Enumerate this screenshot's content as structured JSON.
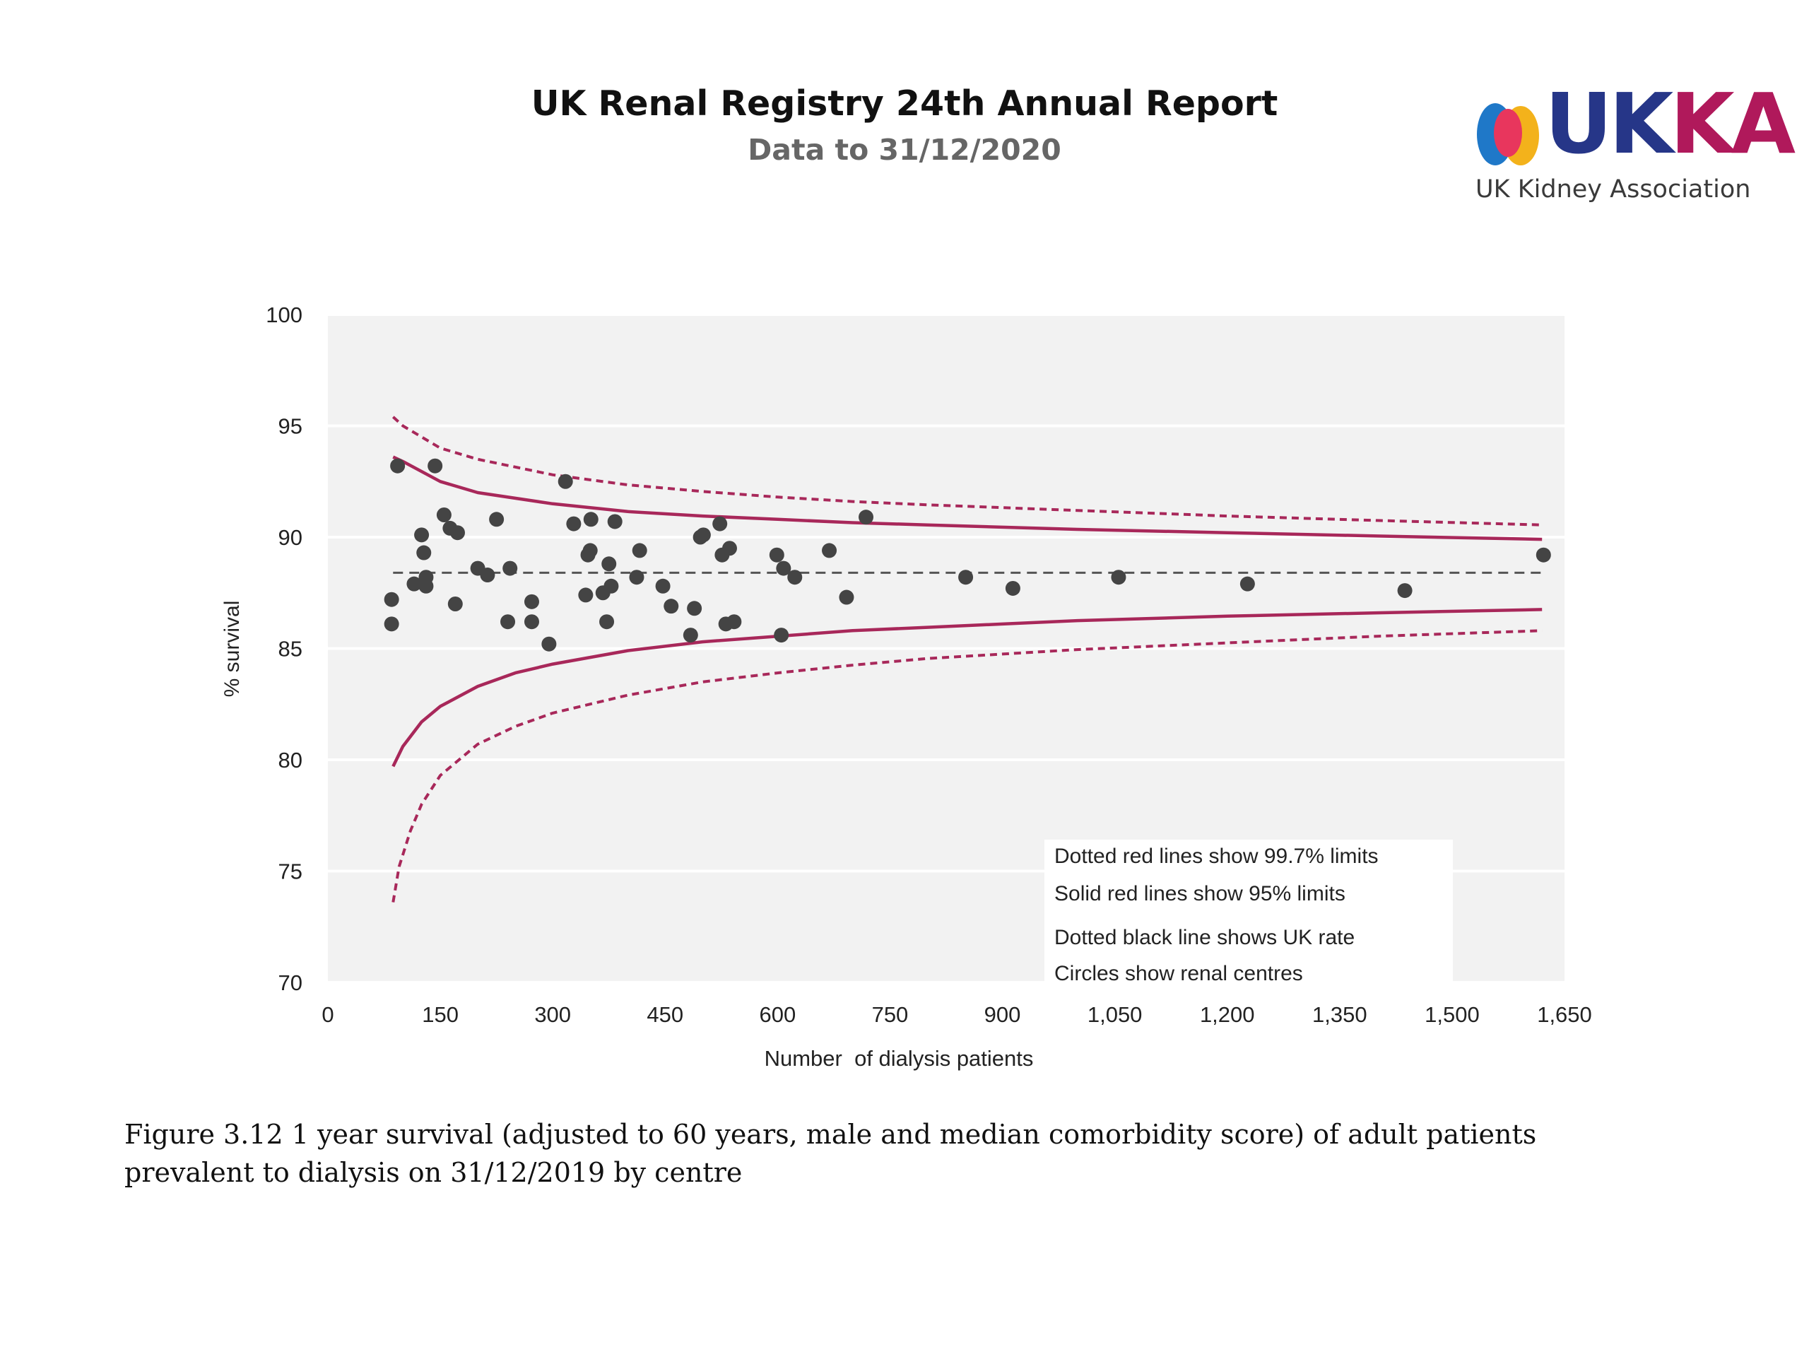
{
  "header": {
    "title": "UK Renal Registry 24th Annual Report",
    "subtitle": "Data to 31/12/2020"
  },
  "logo": {
    "text_uk": "UK",
    "text_ka": "KA",
    "tagline": "UK Kidney Association",
    "colors": [
      "#1f78c8",
      "#f3b21b",
      "#e8365d",
      "#263688",
      "#b0195b"
    ]
  },
  "caption": "Figure 3.12 1 year survival (adjusted to 60 years, male and median comorbidity score) of adult patients prevalent to dialysis on 31/12/2019 by centre",
  "chart_data": {
    "type": "scatter",
    "title": "",
    "xlabel": "Number  of dialysis patients",
    "ylabel": "% survival",
    "xlim": [
      0,
      1650
    ],
    "ylim": [
      70,
      100
    ],
    "x_ticks": [
      0,
      150,
      300,
      450,
      600,
      750,
      900,
      1050,
      1200,
      1350,
      1500,
      1650
    ],
    "x_tick_labels": [
      "0",
      "150",
      "300",
      "450",
      "600",
      "750",
      "900",
      "1,050",
      "1,200",
      "1,350",
      "1,500",
      "1,650"
    ],
    "y_ticks": [
      70,
      75,
      80,
      85,
      90,
      95,
      100
    ],
    "y_tick_labels": [
      "70",
      "75",
      "80",
      "85",
      "90",
      "95",
      "100"
    ],
    "grid": "horizontal",
    "uk_rate": 88.4,
    "colors": {
      "limits": "#a8285a",
      "points": "#444444",
      "uk_rate": "#555555",
      "plot_bg": "#f2f2f2"
    },
    "limits_95_upper": [
      [
        87,
        93.6
      ],
      [
        100,
        93.4
      ],
      [
        150,
        92.5
      ],
      [
        200,
        92.0
      ],
      [
        300,
        91.5
      ],
      [
        400,
        91.15
      ],
      [
        500,
        90.95
      ],
      [
        600,
        90.8
      ],
      [
        700,
        90.65
      ],
      [
        800,
        90.55
      ],
      [
        1000,
        90.35
      ],
      [
        1200,
        90.2
      ],
      [
        1400,
        90.05
      ],
      [
        1620,
        89.9
      ]
    ],
    "limits_95_lower": [
      [
        87,
        79.7
      ],
      [
        100,
        80.6
      ],
      [
        125,
        81.7
      ],
      [
        150,
        82.4
      ],
      [
        200,
        83.3
      ],
      [
        250,
        83.9
      ],
      [
        300,
        84.3
      ],
      [
        400,
        84.9
      ],
      [
        500,
        85.3
      ],
      [
        600,
        85.55
      ],
      [
        700,
        85.8
      ],
      [
        800,
        85.95
      ],
      [
        900,
        86.1
      ],
      [
        1000,
        86.25
      ],
      [
        1200,
        86.45
      ],
      [
        1400,
        86.6
      ],
      [
        1620,
        86.75
      ]
    ],
    "limits_997_upper": [
      [
        87,
        95.4
      ],
      [
        100,
        95.0
      ],
      [
        150,
        94.0
      ],
      [
        200,
        93.5
      ],
      [
        300,
        92.8
      ],
      [
        400,
        92.35
      ],
      [
        500,
        92.05
      ],
      [
        600,
        91.8
      ],
      [
        700,
        91.6
      ],
      [
        800,
        91.45
      ],
      [
        1000,
        91.2
      ],
      [
        1200,
        90.95
      ],
      [
        1400,
        90.75
      ],
      [
        1620,
        90.55
      ]
    ],
    "limits_997_lower": [
      [
        87,
        73.6
      ],
      [
        95,
        75.2
      ],
      [
        110,
        76.8
      ],
      [
        125,
        78.0
      ],
      [
        150,
        79.3
      ],
      [
        200,
        80.7
      ],
      [
        250,
        81.5
      ],
      [
        300,
        82.1
      ],
      [
        400,
        82.9
      ],
      [
        500,
        83.5
      ],
      [
        600,
        83.9
      ],
      [
        700,
        84.25
      ],
      [
        800,
        84.55
      ],
      [
        900,
        84.75
      ],
      [
        1000,
        84.95
      ],
      [
        1200,
        85.25
      ],
      [
        1400,
        85.55
      ],
      [
        1620,
        85.8
      ]
    ],
    "points": [
      [
        85,
        87.2
      ],
      [
        85,
        86.1
      ],
      [
        93,
        93.2
      ],
      [
        115,
        87.9
      ],
      [
        125,
        90.1
      ],
      [
        128,
        89.3
      ],
      [
        131,
        88.2
      ],
      [
        131,
        87.8
      ],
      [
        143,
        93.2
      ],
      [
        155,
        91.0
      ],
      [
        163,
        90.4
      ],
      [
        170,
        87.0
      ],
      [
        173,
        90.2
      ],
      [
        200,
        88.6
      ],
      [
        213,
        88.3
      ],
      [
        225,
        90.8
      ],
      [
        240,
        86.2
      ],
      [
        243,
        88.6
      ],
      [
        272,
        87.1
      ],
      [
        272,
        86.2
      ],
      [
        295,
        85.2
      ],
      [
        317,
        92.5
      ],
      [
        328,
        90.6
      ],
      [
        344,
        87.4
      ],
      [
        347,
        89.2
      ],
      [
        350,
        89.4
      ],
      [
        351,
        90.8
      ],
      [
        367,
        87.5
      ],
      [
        372,
        86.2
      ],
      [
        375,
        88.8
      ],
      [
        378,
        87.8
      ],
      [
        383,
        90.7
      ],
      [
        412,
        88.2
      ],
      [
        416,
        89.4
      ],
      [
        447,
        87.8
      ],
      [
        458,
        86.9
      ],
      [
        484,
        85.6
      ],
      [
        489,
        86.8
      ],
      [
        497,
        90.0
      ],
      [
        501,
        90.1
      ],
      [
        523,
        90.6
      ],
      [
        526,
        89.2
      ],
      [
        531,
        86.1
      ],
      [
        536,
        89.5
      ],
      [
        542,
        86.2
      ],
      [
        599,
        89.2
      ],
      [
        605,
        85.6
      ],
      [
        608,
        88.6
      ],
      [
        623,
        88.2
      ],
      [
        669,
        89.4
      ],
      [
        692,
        87.3
      ],
      [
        718,
        90.9
      ],
      [
        851,
        88.2
      ],
      [
        914,
        87.7
      ],
      [
        1055,
        88.2
      ],
      [
        1227,
        87.9
      ],
      [
        1437,
        87.6
      ],
      [
        1622,
        89.2
      ]
    ],
    "legend": [
      "Dotted red lines show 99.7% limits",
      "Solid red lines show 95% limits",
      "Dotted black line shows UK rate",
      "Circles show renal centres"
    ],
    "legend_position": "bottom-right"
  }
}
